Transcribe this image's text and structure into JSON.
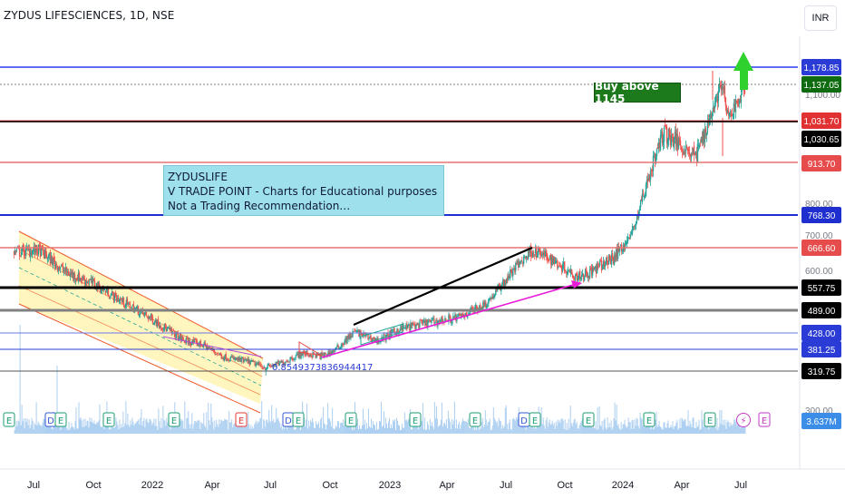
{
  "header": {
    "title": "ZYDUS LIFESCIENCES, 1D, NSE",
    "currency": "INR"
  },
  "annotations": {
    "note_lines": [
      "ZYDUSLIFE",
      "V TRADE POINT - Charts for Educational purposes only.",
      "Not a Trading Recommendation…"
    ],
    "buy_label": "Buy above 1145",
    "fib_value": "0.8549373836944417"
  },
  "chart_data": {
    "type": "candlestick",
    "symbol": "ZYDUS LIFESCIENCES",
    "interval": "1D",
    "exchange": "NSE",
    "currency": "INR",
    "x_tick_labels": [
      "Jul",
      "Oct",
      "2022",
      "Apr",
      "Jul",
      "Oct",
      "2023",
      "Apr",
      "Jul",
      "Oct",
      "2024",
      "Apr",
      "Jul"
    ],
    "y_tick_labels": [
      "1,100.00",
      "800.00",
      "700.00",
      "600.00",
      "300.00"
    ],
    "price_path": [
      [
        "2021-06-01",
        655
      ],
      [
        "2021-07-10",
        660
      ],
      [
        "2021-08-20",
        600
      ],
      [
        "2021-10-01",
        570
      ],
      [
        "2021-11-20",
        510
      ],
      [
        "2022-01-05",
        460
      ],
      [
        "2022-02-20",
        405
      ],
      [
        "2022-03-20",
        395
      ],
      [
        "2022-04-20",
        360
      ],
      [
        "2022-06-01",
        345
      ],
      [
        "2022-06-25",
        330
      ],
      [
        "2022-07-20",
        343
      ],
      [
        "2022-08-20",
        370
      ],
      [
        "2022-09-20",
        362
      ],
      [
        "2022-10-10",
        378
      ],
      [
        "2022-11-10",
        432
      ],
      [
        "2022-12-15",
        405
      ],
      [
        "2023-01-20",
        440
      ],
      [
        "2023-03-01",
        455
      ],
      [
        "2023-04-20",
        470
      ],
      [
        "2023-06-01",
        510
      ],
      [
        "2023-07-15",
        610
      ],
      [
        "2023-08-10",
        660
      ],
      [
        "2023-09-10",
        635
      ],
      [
        "2023-10-20",
        590
      ],
      [
        "2023-11-10",
        600
      ],
      [
        "2023-12-15",
        640
      ],
      [
        "2024-01-10",
        700
      ],
      [
        "2024-02-05",
        860
      ],
      [
        "2024-03-01",
        1000
      ],
      [
        "2024-03-25",
        970
      ],
      [
        "2024-04-20",
        930
      ],
      [
        "2024-05-15",
        1060
      ],
      [
        "2024-05-30",
        1140
      ],
      [
        "2024-06-10",
        1030
      ],
      [
        "2024-06-20",
        1080
      ],
      [
        "2024-07-01",
        1110
      ],
      [
        "2024-07-05",
        1137.05
      ]
    ],
    "price_levels": [
      {
        "value": "1,178.85",
        "color": "#2b3cd6"
      },
      {
        "value": "1,137.05",
        "color": "#0f6b0f"
      },
      {
        "value": "1,031.70",
        "color": "#e03232"
      },
      {
        "value": "1,030.65",
        "color": "#000000"
      },
      {
        "value": "913.70",
        "color": "#e74c4c"
      },
      {
        "value": "768.30",
        "color": "#1f2fcf"
      },
      {
        "value": "666.60",
        "color": "#e74c4c"
      },
      {
        "value": "557.75",
        "color": "#000000"
      },
      {
        "value": "489.00",
        "color": "#000000"
      },
      {
        "value": "428.00",
        "color": "#2b3cd6"
      },
      {
        "value": "381.25",
        "color": "#2b3cd6"
      },
      {
        "value": "319.75",
        "color": "#000000"
      }
    ],
    "volume_label": "3.637M",
    "event_markers": [
      "E",
      "E",
      "E",
      "E",
      "E",
      "E",
      "E",
      "E",
      "E",
      "E",
      "E",
      "E",
      "E",
      "D",
      "E",
      "D",
      "E",
      "E",
      "E",
      "E",
      "E",
      "E",
      "E"
    ],
    "colors": {
      "up": "#26a69a",
      "down": "#ef5350",
      "volume": "#9fc7ef",
      "channel_fill": "#fff4b8",
      "channel_line": "#ef5a2a",
      "trend_black": "#000000",
      "trend_magenta": "#e81ad8",
      "buy_arrow": "#2ed12e"
    }
  }
}
